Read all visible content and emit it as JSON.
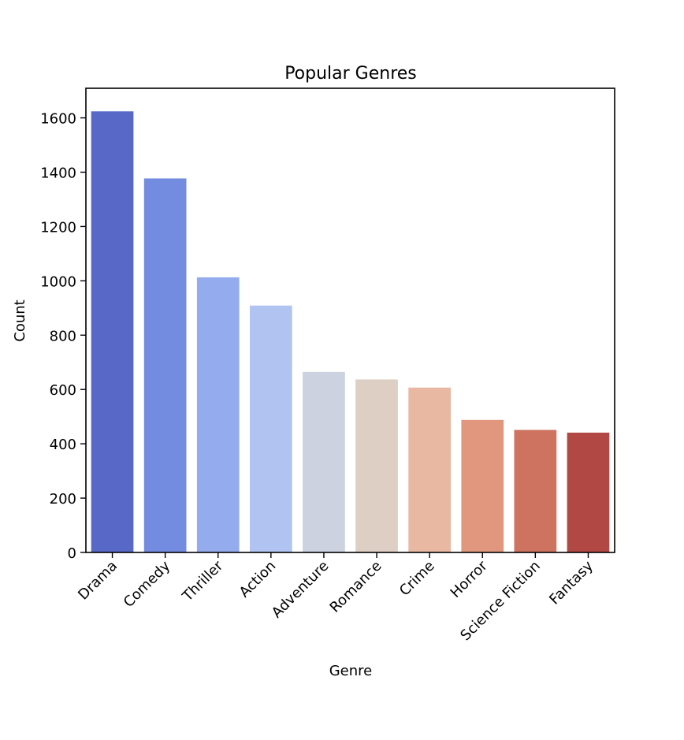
{
  "chart_data": {
    "type": "bar",
    "title": "Popular Genres",
    "xlabel": "Genre",
    "ylabel": "Count",
    "categories": [
      "Drama",
      "Comedy",
      "Thriller",
      "Action",
      "Adventure",
      "Romance",
      "Crime",
      "Horror",
      "Science Fiction",
      "Fantasy"
    ],
    "values": [
      1624,
      1377,
      1013,
      909,
      665,
      637,
      607,
      488,
      451,
      441
    ],
    "colors": [
      "#5768c7",
      "#748ce0",
      "#94acee",
      "#b1c4f1",
      "#ccd2e0",
      "#ddcfc4",
      "#e9b8a3",
      "#e0977d",
      "#cd7360",
      "#b24843"
    ],
    "ylim": [
      0,
      1709
    ],
    "yticks": [
      0,
      200,
      400,
      600,
      800,
      1000,
      1200,
      1400,
      1600
    ],
    "grid": false,
    "legend": "none"
  }
}
